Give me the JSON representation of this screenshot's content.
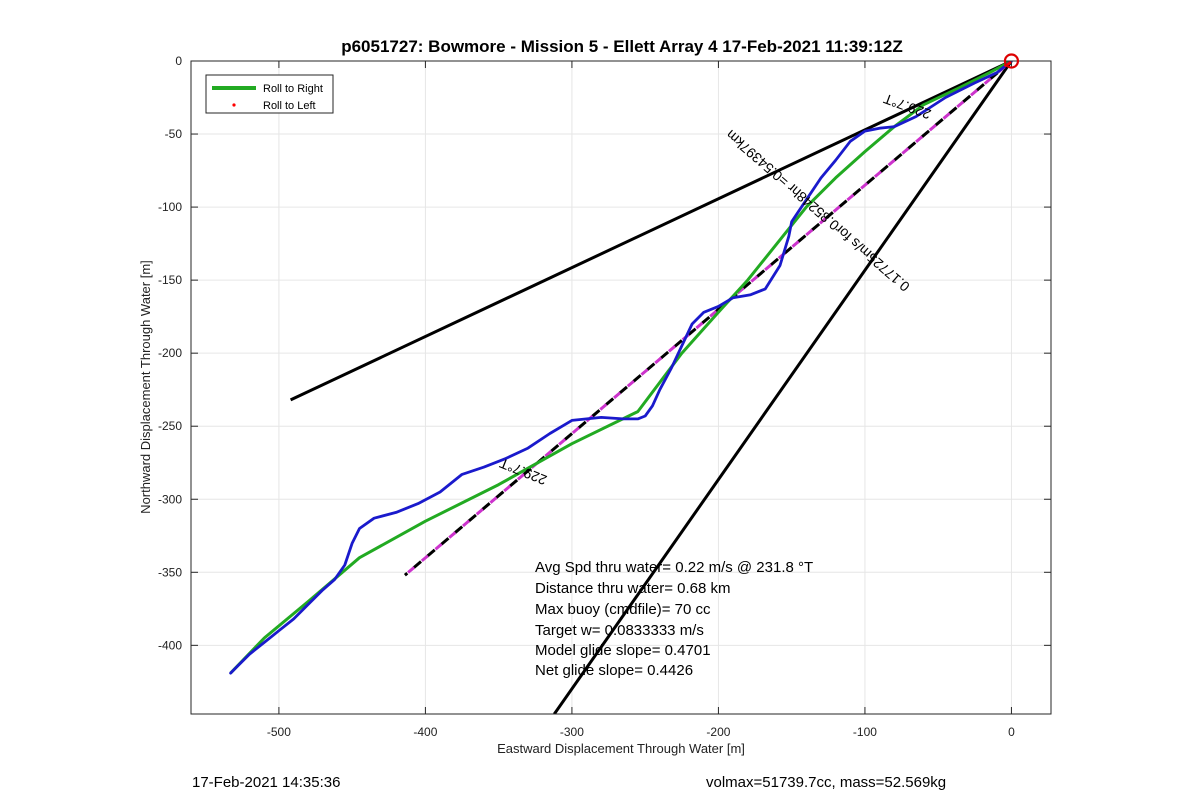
{
  "chart_data": {
    "type": "line",
    "title": "p6051727: Bowmore - Mission 5 - Ellett Array 4 17-Feb-2021 11:39:12Z",
    "xlabel": "Eastward Displacement Through Water [m]",
    "ylabel": "Northward Displacement Through Water [m]",
    "xlim": [
      -560,
      27
    ],
    "ylim": [
      -447,
      0
    ],
    "xticks": [
      -500,
      -400,
      -300,
      -200,
      -100,
      0
    ],
    "yticks": [
      0,
      -50,
      -100,
      -150,
      -200,
      -250,
      -300,
      -350,
      -400
    ],
    "grid": true,
    "legend": {
      "placement": "top-left",
      "entries": [
        {
          "label": "Roll to Right",
          "color": "#22aa22",
          "style": "line"
        },
        {
          "label": "Roll to Left",
          "color": "#ff0000",
          "style": "dot"
        }
      ]
    },
    "series": [
      {
        "name": "Roll to Right",
        "color": "#22aa22",
        "x": [
          0,
          -15,
          -35,
          -60,
          -80,
          -100,
          -120,
          -140,
          -160,
          -180,
          -200,
          -225,
          -255,
          -300,
          -350,
          -400,
          -445,
          -480,
          -510,
          -533
        ],
        "y": [
          0,
          -8,
          -18,
          -30,
          -45,
          -62,
          -80,
          -100,
          -125,
          -150,
          -172,
          -200,
          -240,
          -262,
          -290,
          -315,
          -340,
          -370,
          -395,
          -419
        ]
      },
      {
        "color": "#1a1acc",
        "x": [
          0,
          -10,
          -25,
          -45,
          -65,
          -80,
          -90,
          -100,
          -110,
          -120,
          -130,
          -140,
          -150,
          -152,
          -158,
          -168,
          -178,
          -190,
          -200,
          -210,
          -218,
          -225,
          -232,
          -240,
          -245,
          -250,
          -255,
          -265,
          -280,
          -300,
          -315,
          -330,
          -345,
          -360,
          -375,
          -390,
          -405,
          -420,
          -435,
          -445,
          -450,
          -455,
          -462,
          -470,
          -480,
          -490,
          -500,
          -510,
          -520,
          -528,
          -533
        ],
        "y": [
          0,
          -8,
          -15,
          -25,
          -38,
          -45,
          -46,
          -48,
          -55,
          -68,
          -80,
          -95,
          -110,
          -120,
          -140,
          -156,
          -160,
          -162,
          -168,
          -172,
          -180,
          -195,
          -210,
          -225,
          -236,
          -243,
          -245,
          -245,
          -244,
          -246,
          -255,
          -265,
          -272,
          -278,
          -283,
          -295,
          -303,
          -309,
          -313,
          -320,
          -330,
          -345,
          -355,
          -362,
          -372,
          -382,
          -390,
          -398,
          -406,
          -414,
          -419
        ]
      },
      {
        "name": "Roll to Left",
        "color": "#ff0000",
        "x": [
          -1,
          -4,
          -2
        ],
        "y": [
          -1,
          -3,
          -2
        ]
      },
      {
        "color": "#cc33cc",
        "x": [
          0,
          -414
        ],
        "y": [
          0,
          -352
        ]
      }
    ],
    "guide_lines": [
      {
        "x": [
          0,
          -492
        ],
        "y": [
          0,
          -232
        ],
        "color": "#000000"
      },
      {
        "x": [
          0,
          -312
        ],
        "y": [
          0,
          -447
        ],
        "color": "#000000"
      }
    ],
    "start_marker": {
      "x": 0,
      "y": 0,
      "color": "#dd0000"
    },
    "annotations": [
      {
        "text": "229.7°T",
        "x": -70,
        "y": -28,
        "rotation_deg": 200
      },
      {
        "text": "229.7°T",
        "x": -332,
        "y": -278,
        "rotation_deg": 202
      },
      {
        "text": "0.17725m/s for0.85248hr =0.54397km",
        "x": -130,
        "y": -100,
        "rotation_deg": 221
      }
    ],
    "stats": [
      "Avg Spd thru water=  0.22 m/s @ 231.8 °T",
      "Distance thru water=  0.68 km",
      "Max buoy (cmdfile)= 70 cc",
      "Target w= 0.0833333 m/s",
      "Model glide slope= 0.4701",
      "Net glide slope= 0.4426"
    ]
  },
  "footer": {
    "left": "17-Feb-2021 14:35:36",
    "right": "volmax=51739.7cc, mass=52.569kg"
  }
}
